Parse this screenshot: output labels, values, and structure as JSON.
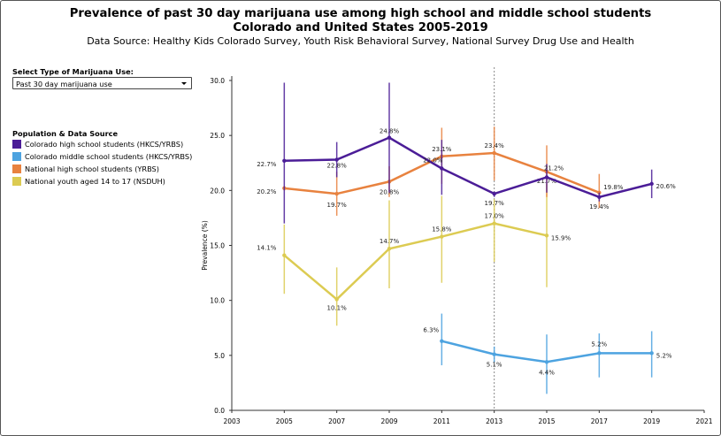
{
  "chart_data": {
    "type": "line",
    "title_line1": "Prevalence of past 30 day marijuana use among high school and middle school students",
    "title_line2": "Colorado and United States 2005-2019",
    "subtitle": "Data Source: Healthy Kids Colorado Survey, Youth Risk Behavioral Survey, National Survey Drug Use and Health",
    "xlabel": "",
    "ylabel": "Prevalence (%)",
    "xlim": [
      2003,
      2021
    ],
    "ylim": [
      0,
      30
    ],
    "x_ticks": [
      "2003",
      "2005",
      "2007",
      "2009",
      "2011",
      "2013",
      "2015",
      "2017",
      "2019",
      "2021"
    ],
    "y_ticks": [
      "0.0",
      "5.0",
      "10.0",
      "15.0",
      "20.0",
      "25.0",
      "30.0"
    ],
    "reference_line_x": 2013,
    "series": [
      {
        "name": "Colorado high school students (HKCS/YRBS)",
        "color": "#4b1d97",
        "x": [
          2005,
          2007,
          2009,
          2011,
          2013,
          2015,
          2017,
          2019
        ],
        "values": [
          22.7,
          22.8,
          24.8,
          22.0,
          19.7,
          21.2,
          19.4,
          20.6
        ],
        "labels": [
          "22.7%",
          "22.8%",
          "24.8%",
          "22.0%",
          "19.7%",
          "21.2%",
          "19.4%",
          "20.6%"
        ],
        "ci_low": [
          17.0,
          21.2,
          19.8,
          19.6,
          19.4,
          19.8,
          19.0,
          19.3
        ],
        "ci_high": [
          29.8,
          24.4,
          29.8,
          24.6,
          19.9,
          22.4,
          19.8,
          21.9
        ]
      },
      {
        "name": "Colorado middle school students (HKCS/YRBS)",
        "color": "#4da3e0",
        "x": [
          2011,
          2013,
          2015,
          2017,
          2019
        ],
        "values": [
          6.3,
          5.1,
          4.4,
          5.2,
          5.2
        ],
        "labels": [
          "6.3%",
          "5.1%",
          "4.4%",
          "5.2%",
          "5.2%"
        ],
        "ci_low": [
          4.1,
          4.4,
          1.5,
          3.0,
          3.0
        ],
        "ci_high": [
          8.8,
          5.8,
          6.9,
          7.0,
          7.2
        ]
      },
      {
        "name": "National high school students (YRBS)",
        "color": "#e8823f",
        "x": [
          2005,
          2007,
          2009,
          2011,
          2013,
          2015,
          2017
        ],
        "values": [
          20.2,
          19.7,
          20.8,
          23.1,
          23.4,
          21.7,
          19.8
        ],
        "labels": [
          "20.2%",
          "19.7%",
          "20.8%",
          "23.1%",
          "23.4%",
          "21.7%",
          "19.8%"
        ],
        "ci_low": [
          20.0,
          17.7,
          19.4,
          20.6,
          20.9,
          19.4,
          18.4
        ],
        "ci_high": [
          20.4,
          21.7,
          22.2,
          25.7,
          25.8,
          24.1,
          21.5
        ]
      },
      {
        "name": "National youth aged 14 to 17 (NSDUH)",
        "color": "#dccb52",
        "x": [
          2005,
          2007,
          2009,
          2011,
          2013,
          2015
        ],
        "values": [
          14.1,
          10.1,
          14.7,
          15.8,
          17.0,
          15.9
        ],
        "labels": [
          "14.1%",
          "10.1%",
          "14.7%",
          "15.8%",
          "17.0%",
          "15.9%"
        ],
        "ci_low": [
          10.6,
          7.7,
          11.1,
          11.6,
          13.5,
          11.2
        ],
        "ci_high": [
          16.9,
          13.0,
          19.1,
          19.5,
          19.2,
          20.6
        ]
      }
    ]
  },
  "controls": {
    "select_label": "Select Type of Marijuana Use:",
    "select_value": "Past 30 day marijuana use",
    "legend_title": "Population & Data Source"
  }
}
